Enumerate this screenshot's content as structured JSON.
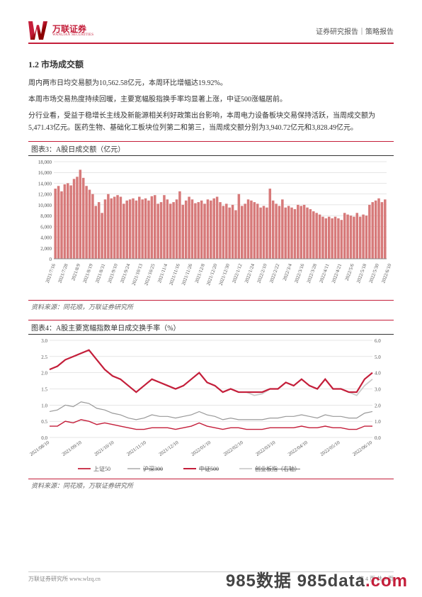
{
  "header": {
    "logo_cn": "万联证券",
    "logo_en": "WANLIAN SECURITIES",
    "meta": "证券研究报告｜策略报告"
  },
  "section": {
    "title": "1.2 市场成交额",
    "p1": "周内两市日均交易额为10,562.58亿元，本周环比增幅达19.92%。",
    "p2": "本周市场交易热度持续回暖，主要宽幅股指换手率均显著上涨，中证500涨幅居前。",
    "p3": "分行业看，受益于稳增长主线及新能源相关利好政策出台影响，本周电力设备板块交易保持活跃，当周成交额为5,471.43亿元。医药生物、基础化工板块位列第二和第三，当周成交额分别为3,940.72亿元和3,828.49亿元。"
  },
  "chart3": {
    "type": "bar",
    "title": "图表3：A股日成交额（亿元）",
    "source": "资料来源：同花顺，万联证券研究所",
    "y_ticks": [
      0,
      2000,
      4000,
      6000,
      8000,
      10000,
      12000,
      14000,
      16000,
      18000
    ],
    "ylim": [
      0,
      18000
    ],
    "x_labels": [
      "2021/7/16",
      "2021/7/28",
      "2021/8/9",
      "2021/8/19",
      "2021/8/31",
      "2021/9/10",
      "2021/9/24",
      "2021/10/13",
      "2021/10/25",
      "2021/11/4",
      "2021/11/16",
      "2021/11/26",
      "2021/12/8",
      "2021/12/20",
      "2021/12/30",
      "2022/1/12",
      "2022/1/24",
      "2022/2/10",
      "2022/2/22",
      "2022/3/4",
      "2022/3/16",
      "2022/3/28",
      "2022/4/11",
      "2022/4/21",
      "2022/5/6",
      "2022/5/18",
      "2022/5/30",
      "2022/6/10"
    ],
    "bar_color": "#d77a7a",
    "grid_color": "#cccccc",
    "background_color": "#ffffff",
    "values": [
      13000,
      13500,
      12500,
      13800,
      14000,
      13600,
      14800,
      15200,
      16500,
      15000,
      13500,
      12800,
      12000,
      9800,
      10500,
      8500,
      11000,
      12000,
      11200,
      11500,
      11800,
      11500,
      10200,
      10800,
      11000,
      11200,
      10800,
      11500,
      11000,
      11200,
      10800,
      11600,
      11800,
      10200,
      10500,
      11800,
      11000,
      10200,
      10500,
      11000,
      12500,
      10000,
      10800,
      11500,
      11000,
      10300,
      10500,
      10800,
      10200,
      11000,
      10800,
      11200,
      11500,
      10500,
      9800,
      10200,
      9500,
      10000,
      9000,
      12000,
      9800,
      10200,
      11000,
      10800,
      10500,
      10200,
      9500,
      9800,
      9500,
      13000,
      10800,
      10200,
      9800,
      11000,
      9500,
      9800,
      9500,
      9200,
      10000,
      9800,
      10000,
      9500,
      9200,
      8800,
      8500,
      8200,
      7800,
      7500,
      7800,
      7500,
      7800,
      7500,
      7200,
      8500,
      8200,
      8000,
      7800,
      8500,
      7800,
      8200,
      8000,
      10000,
      10500,
      10800,
      11200,
      10500,
      11000
    ]
  },
  "chart4": {
    "type": "line",
    "title": "图表4：A股主要宽幅指数单日成交换手率（%）",
    "source": "资料来源：同花顺，万联证券研究所",
    "y_left_ticks": [
      0.0,
      0.5,
      1.0,
      1.5,
      2.0,
      2.5,
      3.0
    ],
    "y_right_ticks": [
      0.0,
      1.0,
      2.0,
      3.0,
      4.0,
      5.0,
      6.0
    ],
    "ylim_left": [
      0,
      3.0
    ],
    "ylim_right": [
      0,
      6.0
    ],
    "x_labels": [
      "2021/08/10",
      "2021/09/10",
      "2021/10/10",
      "2021/11/10",
      "2021/12/10",
      "2022/01/10",
      "2022/02/10",
      "2022/03/10",
      "2022/04/10",
      "2022/05/10",
      "2022/06/10"
    ],
    "legend": [
      "上证50",
      "沪深300",
      "中证500",
      "创业板指（右轴）"
    ],
    "series_colors": {
      "sz50": "#c41e3a",
      "hs300": "#999999",
      "zz500": "#c41e3a",
      "cyb": "#cccccc"
    },
    "series_styles": {
      "sz50": "solid-thick",
      "hs300": "solid",
      "zz500": "dashed",
      "cyb": "solid-thick-light"
    },
    "grid_color": "#cccccc",
    "background_color": "#ffffff",
    "sz50": [
      0.35,
      0.35,
      0.5,
      0.45,
      0.55,
      0.5,
      0.4,
      0.45,
      0.4,
      0.35,
      0.3,
      0.25,
      0.25,
      0.3,
      0.3,
      0.3,
      0.25,
      0.3,
      0.35,
      0.45,
      0.35,
      0.3,
      0.25,
      0.3,
      0.3,
      0.25,
      0.25,
      0.25,
      0.3,
      0.3,
      0.3,
      0.3,
      0.35,
      0.3,
      0.3,
      0.35,
      0.3,
      0.3,
      0.25,
      0.25,
      0.35,
      0.35
    ],
    "hs300": [
      0.8,
      0.85,
      1.0,
      0.95,
      1.1,
      1.05,
      0.9,
      0.85,
      0.75,
      0.7,
      0.6,
      0.55,
      0.6,
      0.7,
      0.65,
      0.65,
      0.6,
      0.65,
      0.7,
      0.8,
      0.7,
      0.65,
      0.55,
      0.6,
      0.55,
      0.55,
      0.55,
      0.55,
      0.6,
      0.6,
      0.65,
      0.65,
      0.7,
      0.65,
      0.6,
      0.7,
      0.65,
      0.65,
      0.6,
      0.6,
      0.75,
      0.8
    ],
    "zz500": [
      2.1,
      2.2,
      2.4,
      2.5,
      2.6,
      2.7,
      2.4,
      2.1,
      1.9,
      1.8,
      1.6,
      1.4,
      1.6,
      1.8,
      1.7,
      1.6,
      1.5,
      1.6,
      1.8,
      2.0,
      1.7,
      1.6,
      1.4,
      1.5,
      1.4,
      1.4,
      1.4,
      1.4,
      1.5,
      1.5,
      1.7,
      1.6,
      1.8,
      1.6,
      1.5,
      1.8,
      1.5,
      1.5,
      1.4,
      1.4,
      1.8,
      2.0
    ],
    "cyb": [
      4.2,
      4.4,
      4.8,
      5.0,
      5.2,
      5.4,
      4.8,
      4.2,
      3.8,
      3.6,
      3.2,
      2.8,
      3.2,
      3.6,
      3.4,
      3.2,
      3.0,
      3.2,
      3.6,
      4.0,
      3.4,
      3.2,
      2.8,
      3.0,
      2.8,
      2.8,
      2.6,
      2.7,
      3.0,
      3.0,
      3.4,
      3.2,
      3.6,
      3.2,
      3.0,
      3.6,
      3.0,
      3.0,
      2.8,
      2.6,
      3.2,
      3.6
    ]
  },
  "footer": {
    "left": "万联证券研究所  www.wlzq.cn",
    "right": "第 4 页 共 9 页"
  },
  "watermark": {
    "text1": "985数据",
    "text2": "985data",
    "text3": "com"
  }
}
